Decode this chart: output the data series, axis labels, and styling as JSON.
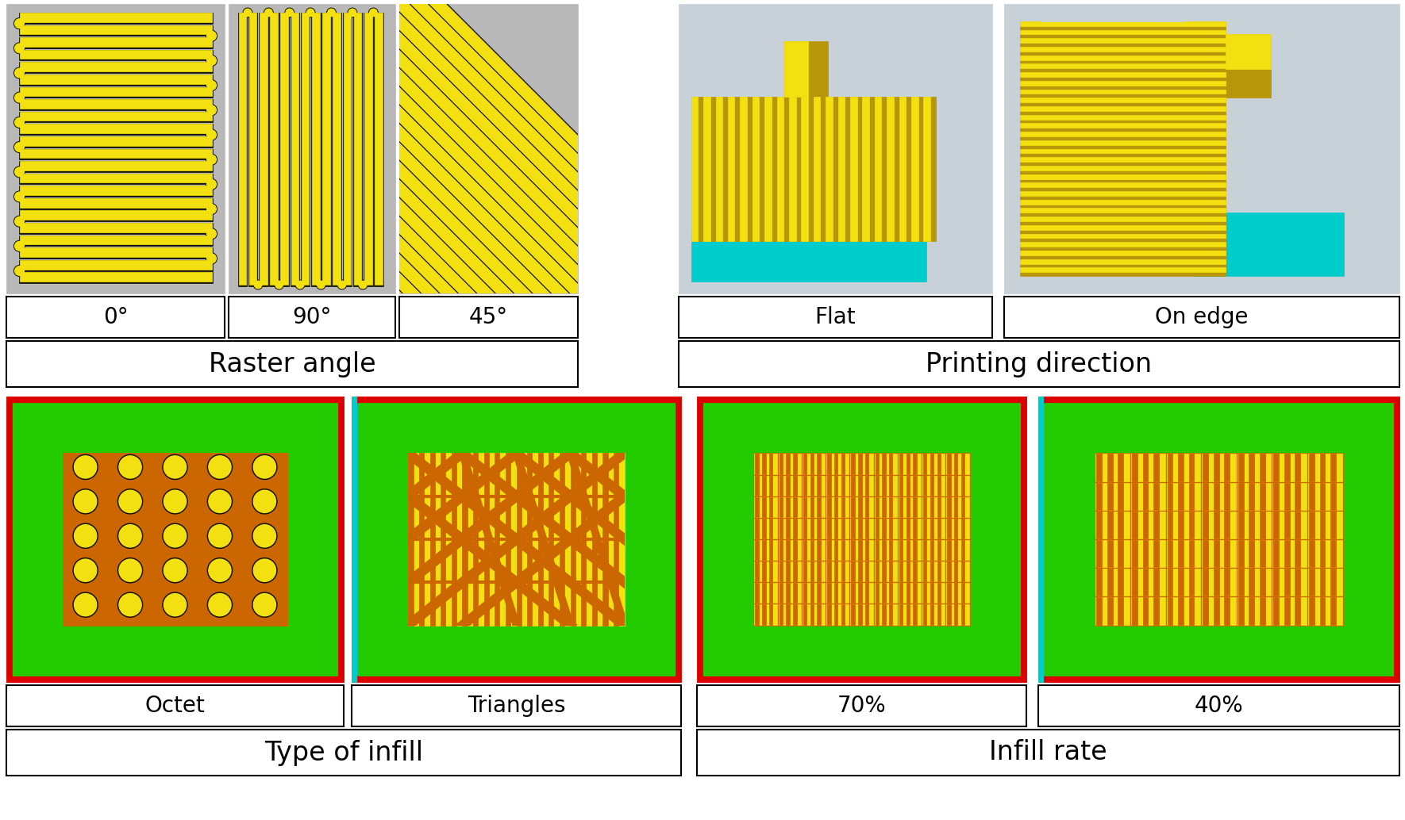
{
  "fig_width": 17.7,
  "fig_height": 10.34,
  "bg": "#ffffff",
  "yellow": "#f2e010",
  "dark_yellow": "#b8960a",
  "olive": "#808000",
  "orange": "#cc6600",
  "green": "#22cc00",
  "red": "#dd0000",
  "cyan": "#00cccc",
  "gray_bg": "#b8b8b8",
  "light_gray": "#d4d4d4",
  "blue_gray": "#c8d0d8",
  "black_line": "#111100",
  "label_fontsize": 20,
  "group_fontsize": 24,
  "top_row_labels": [
    "0°",
    "90°",
    "45°",
    "Flat",
    "On edge"
  ],
  "top_group_labels": [
    "Raster angle",
    "Printing direction"
  ],
  "bottom_row_labels": [
    "Octet",
    "Triangles",
    "70%",
    "40%"
  ],
  "bottom_group_labels": [
    "Type of infill",
    "Infill rate"
  ]
}
